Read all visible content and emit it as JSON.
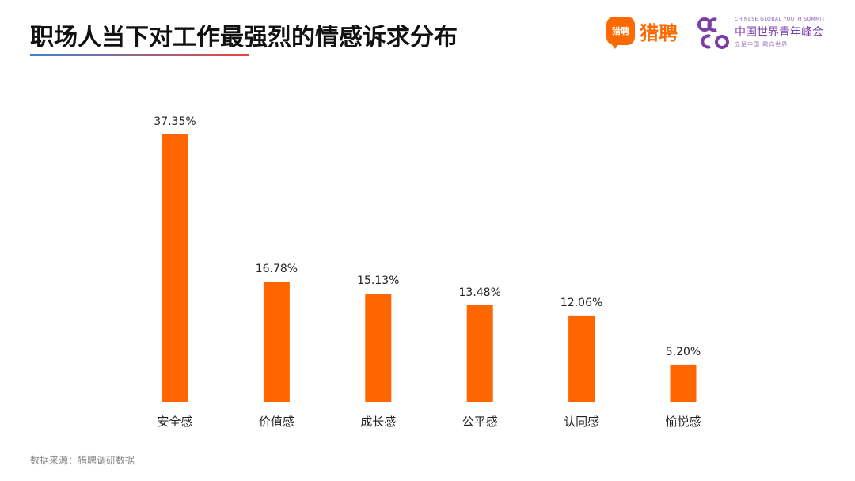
{
  "header": {
    "title": "职场人当下对工作最强烈的情感诉求分布"
  },
  "logos": {
    "liepin_badge_text": "猎聘",
    "liepin_word": "猎聘",
    "summit_en": "CHINESE GLOBAL YOUTH SUMMIT",
    "summit_cn": "中国世界青年峰会",
    "summit_tag": "立足中国    瞰向世界"
  },
  "footer": {
    "source": "数据来源：猎聘调研数据"
  },
  "colors": {
    "bar": "#ff6600",
    "label": "#222222"
  },
  "chart_data": {
    "type": "bar",
    "title": "职场人当下对工作最强烈的情感诉求分布",
    "xlabel": "",
    "ylabel": "",
    "categories": [
      "安全感",
      "价值感",
      "成长感",
      "公平感",
      "认同感",
      "愉悦感"
    ],
    "values": [
      37.35,
      16.78,
      15.13,
      13.48,
      12.06,
      5.2
    ],
    "value_labels": [
      "37.35%",
      "16.78%",
      "15.13%",
      "13.48%",
      "12.06%",
      "5.20%"
    ],
    "ylim": [
      0,
      37.35
    ],
    "grid": false,
    "legend": "none"
  }
}
